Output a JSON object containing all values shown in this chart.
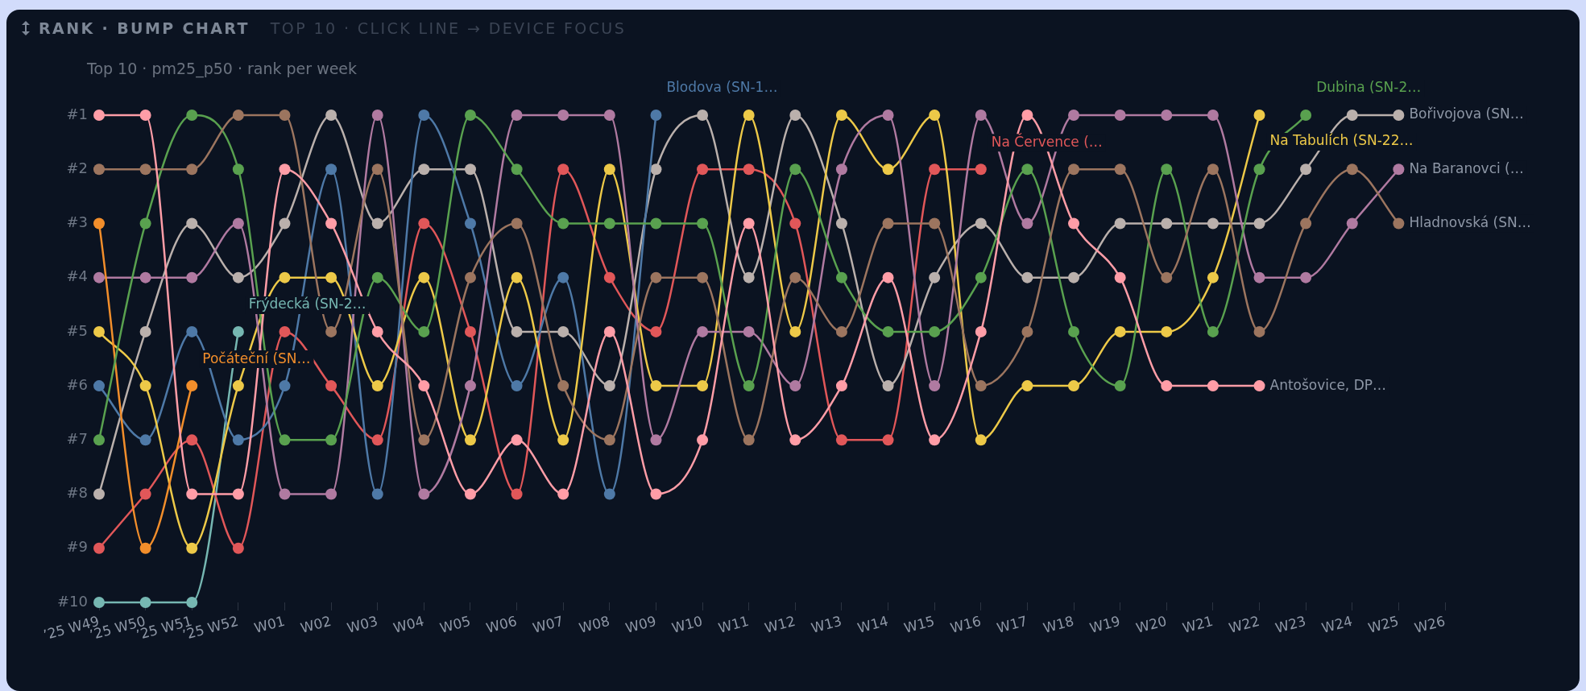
{
  "chart_data": {
    "type": "line",
    "title": "RANK · BUMP CHART",
    "subtitle": "TOP 10 · CLICK LINE → DEVICE FOCUS",
    "annotations": [
      "Top 10 · pm25_p50 · rank per week"
    ],
    "categories": [
      "’25 W49",
      "’25 W50",
      "’25 W51",
      "’25 W52",
      "W01",
      "W02",
      "W03",
      "W04",
      "W05",
      "W06",
      "W07",
      "W08",
      "W09",
      "W10",
      "W11",
      "W12",
      "W13",
      "W14",
      "W15",
      "W16",
      "W17",
      "W18",
      "W19",
      "W20",
      "W21",
      "W22",
      "W23",
      "W24",
      "W25",
      "W26"
    ],
    "ylim": [
      10,
      1
    ],
    "yticks": [
      {
        "value": 1,
        "label": "#1"
      },
      {
        "value": 2,
        "label": "#2"
      },
      {
        "value": 3,
        "label": "#3"
      },
      {
        "value": 4,
        "label": "#4"
      },
      {
        "value": 5,
        "label": "#5"
      },
      {
        "value": 6,
        "label": "#6"
      },
      {
        "value": 7,
        "label": "#7"
      },
      {
        "value": 8,
        "label": "#8"
      },
      {
        "value": 9,
        "label": "#9"
      },
      {
        "value": 10,
        "label": "#10"
      }
    ],
    "marker": "circle",
    "line_style": "solid",
    "series": [
      {
        "name": "Antošovice, DP…",
        "color": "#ff9da7",
        "values": [
          1,
          1,
          8,
          8,
          2,
          3,
          5,
          6,
          8,
          7,
          8,
          5,
          8,
          7,
          3,
          7,
          6,
          4,
          7,
          5,
          1,
          3,
          4,
          6,
          6,
          6,
          null,
          null,
          null,
          null
        ]
      },
      {
        "name": "Hladnovská (SN…",
        "color": "#9c755f",
        "values": [
          2,
          2,
          2,
          1,
          1,
          5,
          2,
          7,
          4,
          3,
          6,
          7,
          4,
          4,
          7,
          4,
          5,
          3,
          3,
          6,
          5,
          2,
          2,
          4,
          2,
          5,
          3,
          2,
          3,
          null
        ]
      },
      {
        "name": "Dubina (SN-2…",
        "color": "#59a14f",
        "values": [
          7,
          3,
          1,
          2,
          7,
          7,
          4,
          5,
          1,
          2,
          3,
          3,
          3,
          3,
          6,
          2,
          4,
          5,
          5,
          4,
          2,
          5,
          6,
          2,
          5,
          2,
          1,
          null,
          null,
          null
        ]
      },
      {
        "name": "Počáteční (SN…",
        "color": "#f28e2b",
        "values": [
          3,
          9,
          6,
          null,
          null,
          null,
          null,
          null,
          null,
          null,
          null,
          null,
          null,
          null,
          null,
          null,
          null,
          null,
          null,
          null,
          null,
          null,
          null,
          null,
          null,
          null,
          null,
          null,
          null,
          null
        ]
      },
      {
        "name": "Na Baranovci (…",
        "color": "#b07aa1",
        "values": [
          4,
          4,
          4,
          3,
          8,
          8,
          1,
          8,
          6,
          1,
          1,
          1,
          7,
          5,
          5,
          6,
          2,
          1,
          6,
          1,
          3,
          1,
          1,
          1,
          1,
          4,
          4,
          3,
          2,
          null
        ]
      },
      {
        "name": "Na Tabulích (SN-22…",
        "color": "#edc948",
        "values": [
          5,
          6,
          9,
          6,
          4,
          4,
          6,
          4,
          7,
          4,
          7,
          2,
          6,
          6,
          1,
          5,
          1,
          2,
          1,
          7,
          6,
          6,
          5,
          5,
          4,
          1,
          null,
          null,
          null,
          null
        ]
      },
      {
        "name": "Blodova (SN-1…",
        "color": "#4e79a7",
        "values": [
          6,
          7,
          5,
          7,
          6,
          2,
          8,
          1,
          3,
          6,
          4,
          8,
          1,
          null,
          null,
          null,
          null,
          null,
          null,
          null,
          null,
          null,
          null,
          null,
          null,
          null,
          null,
          null,
          null,
          null
        ]
      },
      {
        "name": "Bořivojova (SN…",
        "color": "#bab0ac",
        "values": [
          8,
          5,
          3,
          4,
          3,
          1,
          3,
          2,
          2,
          5,
          5,
          6,
          2,
          1,
          4,
          1,
          3,
          6,
          4,
          3,
          4,
          4,
          3,
          3,
          3,
          3,
          2,
          1,
          1,
          null
        ]
      },
      {
        "name": "Na Července (…",
        "color": "#e15759",
        "values": [
          9,
          8,
          7,
          9,
          5,
          6,
          7,
          3,
          5,
          8,
          2,
          4,
          5,
          2,
          2,
          3,
          7,
          7,
          2,
          2,
          null,
          null,
          null,
          null,
          null,
          null,
          null,
          null,
          null,
          null
        ]
      },
      {
        "name": "Frýdecká (SN-2…",
        "color": "#76b7b2",
        "values": [
          10,
          10,
          10,
          5,
          null,
          null,
          null,
          null,
          null,
          null,
          null,
          null,
          null,
          null,
          null,
          null,
          null,
          null,
          null,
          null,
          null,
          null,
          null,
          null,
          null,
          null,
          null,
          null,
          null,
          null
        ]
      }
    ]
  }
}
